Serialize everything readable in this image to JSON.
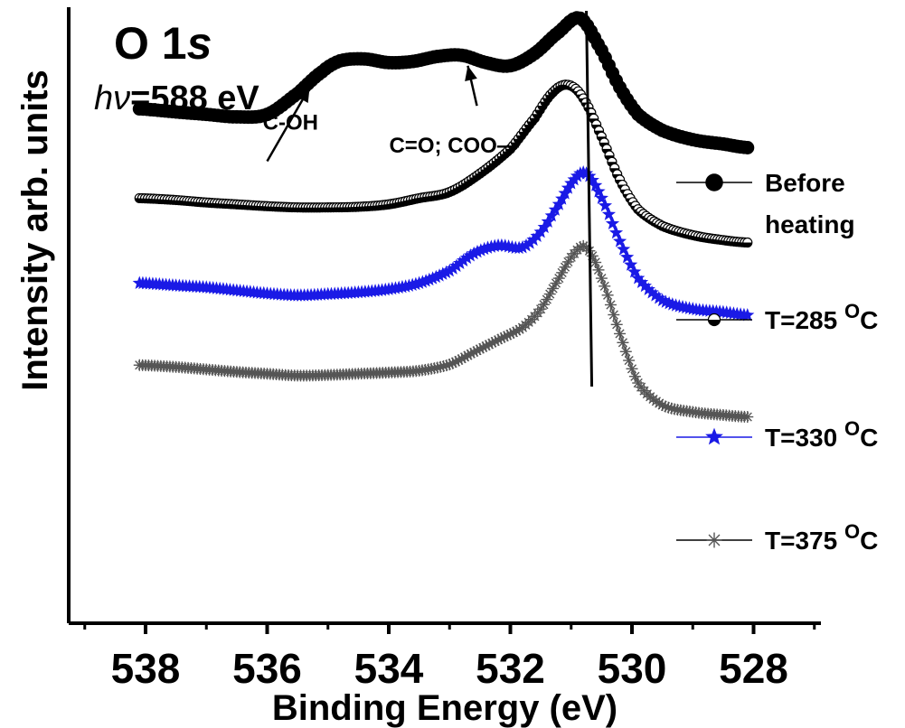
{
  "chart_data": {
    "type": "line",
    "title": "O 1",
    "title_italic": "s",
    "energy_symbol": "hν",
    "energy_value": "=588 eV",
    "xlabel": "Binding Energy (eV)",
    "ylabel": "Intensity arb. units",
    "xlim": [
      539,
      527
    ],
    "xticks": [
      538,
      536,
      534,
      532,
      530,
      528
    ],
    "x_reversed": true,
    "grid": false,
    "legend_position": "right",
    "annotations": [
      {
        "text": "C-OH",
        "x": 535.2,
        "y": 0.86
      },
      {
        "text": "C=O; COO—",
        "x": 532.6,
        "y": 0.82
      }
    ],
    "marker_line": {
      "x": 530.75
    },
    "series": [
      {
        "name": "Before heating",
        "legend_lines": [
          "Before",
          "heating"
        ],
        "marker": "filled-circle",
        "color": "#000000",
        "points": [
          [
            538.1,
            0.835
          ],
          [
            537.5,
            0.83
          ],
          [
            537,
            0.826
          ],
          [
            536.5,
            0.822
          ],
          [
            536,
            0.826
          ],
          [
            535.5,
            0.86
          ],
          [
            535.1,
            0.895
          ],
          [
            534.8,
            0.913
          ],
          [
            534.4,
            0.916
          ],
          [
            534,
            0.91
          ],
          [
            533.6,
            0.912
          ],
          [
            533.2,
            0.92
          ],
          [
            532.8,
            0.922
          ],
          [
            532.4,
            0.91
          ],
          [
            532,
            0.905
          ],
          [
            531.6,
            0.925
          ],
          [
            531.2,
            0.96
          ],
          [
            530.85,
            0.982
          ],
          [
            530.5,
            0.93
          ],
          [
            530.2,
            0.87
          ],
          [
            529.9,
            0.826
          ],
          [
            529.5,
            0.8
          ],
          [
            529,
            0.785
          ],
          [
            528.5,
            0.778
          ],
          [
            528.1,
            0.772
          ]
        ]
      },
      {
        "name": "T=285 °C",
        "legend_label": "T=285",
        "legend_sup": "O",
        "legend_unit": "C",
        "marker": "half-circle",
        "color": "#000000",
        "points": [
          [
            538.1,
            0.69
          ],
          [
            537.5,
            0.687
          ],
          [
            537,
            0.683
          ],
          [
            536.5,
            0.68
          ],
          [
            536,
            0.677
          ],
          [
            535.5,
            0.675
          ],
          [
            535,
            0.675
          ],
          [
            534.5,
            0.676
          ],
          [
            534,
            0.68
          ],
          [
            533.5,
            0.69
          ],
          [
            533,
            0.7
          ],
          [
            532.5,
            0.73
          ],
          [
            532,
            0.77
          ],
          [
            531.6,
            0.82
          ],
          [
            531.3,
            0.862
          ],
          [
            531.05,
            0.874
          ],
          [
            530.8,
            0.852
          ],
          [
            530.5,
            0.79
          ],
          [
            530.2,
            0.72
          ],
          [
            529.9,
            0.672
          ],
          [
            529.5,
            0.645
          ],
          [
            529,
            0.63
          ],
          [
            528.5,
            0.622
          ],
          [
            528.1,
            0.618
          ]
        ]
      },
      {
        "name": "T=330 °C",
        "legend_label": "T=330",
        "legend_sup": "O",
        "legend_unit": "C",
        "marker": "star",
        "color": "#1a1ae6",
        "points": [
          [
            538.1,
            0.552
          ],
          [
            537.5,
            0.548
          ],
          [
            537,
            0.545
          ],
          [
            536.5,
            0.54
          ],
          [
            536,
            0.535
          ],
          [
            535.5,
            0.532
          ],
          [
            535,
            0.534
          ],
          [
            534.5,
            0.537
          ],
          [
            534,
            0.542
          ],
          [
            533.5,
            0.552
          ],
          [
            533,
            0.572
          ],
          [
            532.6,
            0.6
          ],
          [
            532.2,
            0.613
          ],
          [
            531.8,
            0.61
          ],
          [
            531.5,
            0.635
          ],
          [
            531.2,
            0.68
          ],
          [
            530.95,
            0.72
          ],
          [
            530.75,
            0.73
          ],
          [
            530.5,
            0.69
          ],
          [
            530.2,
            0.62
          ],
          [
            529.9,
            0.56
          ],
          [
            529.5,
            0.524
          ],
          [
            529,
            0.51
          ],
          [
            528.5,
            0.505
          ],
          [
            528.1,
            0.5
          ]
        ]
      },
      {
        "name": "T=375 °C",
        "legend_label": "T=375",
        "legend_sup": "O",
        "legend_unit": "C",
        "marker": "asterisk",
        "color": "#555555",
        "points": [
          [
            538.1,
            0.419
          ],
          [
            537.5,
            0.416
          ],
          [
            537,
            0.412
          ],
          [
            536.5,
            0.408
          ],
          [
            536,
            0.405
          ],
          [
            535.5,
            0.402
          ],
          [
            535,
            0.403
          ],
          [
            534.5,
            0.405
          ],
          [
            534,
            0.407
          ],
          [
            533.5,
            0.41
          ],
          [
            533,
            0.42
          ],
          [
            532.6,
            0.44
          ],
          [
            532.2,
            0.46
          ],
          [
            531.8,
            0.48
          ],
          [
            531.5,
            0.51
          ],
          [
            531.2,
            0.56
          ],
          [
            530.95,
            0.6
          ],
          [
            530.75,
            0.61
          ],
          [
            530.5,
            0.56
          ],
          [
            530.2,
            0.47
          ],
          [
            529.9,
            0.39
          ],
          [
            529.5,
            0.354
          ],
          [
            529,
            0.343
          ],
          [
            528.5,
            0.338
          ],
          [
            528.1,
            0.335
          ]
        ]
      }
    ]
  }
}
